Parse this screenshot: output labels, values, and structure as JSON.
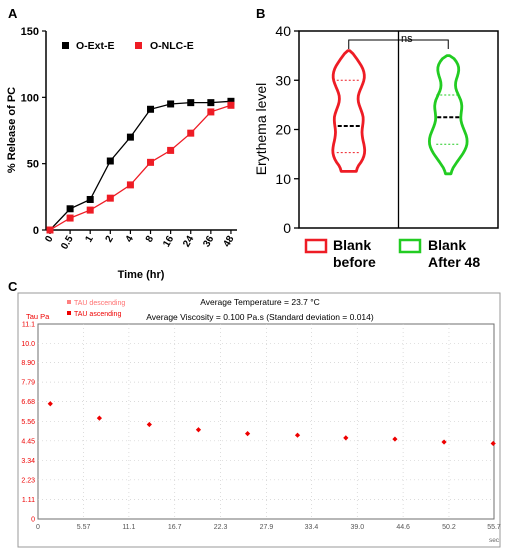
{
  "panels": {
    "a": "A",
    "b": "B",
    "c": "C"
  },
  "chart_data": [
    {
      "type": "line",
      "panel": "A",
      "xlabel": "Time (hr)",
      "ylabel": "% Release of PC",
      "categories": [
        "0",
        "0.5",
        "1",
        "2",
        "4",
        "8",
        "16",
        "24",
        "36",
        "48"
      ],
      "ylim": [
        0,
        150
      ],
      "yticks": [
        "0",
        "50",
        "100",
        "150"
      ],
      "legend": "top-left",
      "series": [
        {
          "name": "O-Ext-E",
          "marker": "square",
          "color": "#000000",
          "values": [
            0,
            16,
            23,
            52,
            70,
            91,
            95,
            96,
            96,
            97
          ]
        },
        {
          "name": "O-NLC-E",
          "marker": "square",
          "color": "#ee1c25",
          "values": [
            0,
            9,
            15,
            24,
            34,
            51,
            60,
            73,
            89,
            94
          ]
        }
      ]
    },
    {
      "type": "violin",
      "panel": "B",
      "ylabel": "Erythema level",
      "ylim": [
        0,
        40
      ],
      "yticks": [
        "0",
        "10",
        "20",
        "30",
        "40"
      ],
      "significance": "ns",
      "groups": [
        {
          "name_line1": "Blank",
          "name_line2": "before",
          "color": "#ee1c25",
          "min": 11.5,
          "max": 36,
          "median": 20.7,
          "q1": 15.3,
          "q3": 30
        },
        {
          "name_line1": "Blank",
          "name_line2": "After 48",
          "color": "#22cc22",
          "min": 11,
          "max": 35,
          "median": 22.5,
          "q1": 17,
          "q3": 27
        }
      ]
    },
    {
      "type": "scatter",
      "panel": "C",
      "title_line1": "Average Temperature  = 23.7 °C",
      "title_line2": "Average Viscosity = 0.100 Pa.s   (Standard deviation = 0.014)",
      "ylabel": "Tau Pa",
      "xunit": "sec",
      "xlim": [
        0,
        55.7
      ],
      "ylim": [
        0,
        11.1
      ],
      "xticks": [
        "0",
        "5.57",
        "11.1",
        "16.7",
        "22.3",
        "27.9",
        "33.4",
        "39.0",
        "44.6",
        "50.2",
        "55.7"
      ],
      "yticks": [
        "11.1",
        "10.0",
        "8.90",
        "7.79",
        "6.68",
        "5.56",
        "4.45",
        "3.34",
        "2.23",
        "1.11",
        "0"
      ],
      "legend": [
        {
          "name": "TAU descending",
          "color": "#ff8080"
        },
        {
          "name": "TAU ascending",
          "color": "#ee0000"
        }
      ],
      "series": [
        {
          "name": "TAU ascending",
          "color": "#ee0000",
          "x": [
            1.5,
            7.5,
            13.6,
            19.6,
            25.6,
            31.7,
            37.6,
            43.6,
            49.6,
            55.6
          ],
          "y": [
            6.56,
            5.74,
            5.38,
            5.08,
            4.86,
            4.77,
            4.62,
            4.55,
            4.38,
            4.3
          ]
        }
      ]
    }
  ]
}
